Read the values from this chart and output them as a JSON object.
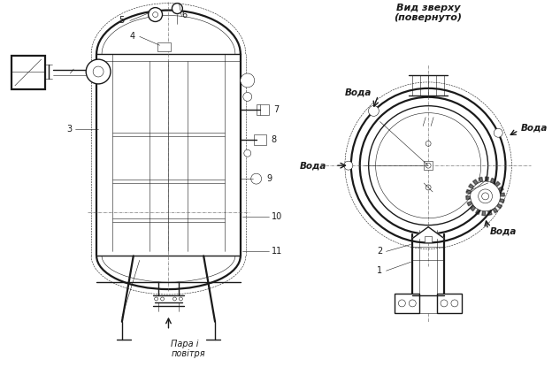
{
  "bg_color": "#ffffff",
  "line_color": "#1a1a1a",
  "figsize": [
    6.24,
    4.15
  ],
  "dpi": 100,
  "view_title": "Вид зверху",
  "view_subtitle": "(повернуто)",
  "label_para": "Пара і\nповітря",
  "lw": 0.8,
  "lw_thick": 1.6,
  "lw_thin": 0.4,
  "lw_med": 1.0
}
